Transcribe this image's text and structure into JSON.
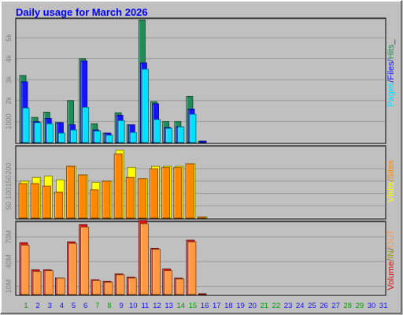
{
  "chart_data": [
    {
      "type": "bar",
      "panel": "hits-files-pages",
      "title": "Daily usage for March 2026",
      "categories": [
        1,
        2,
        3,
        4,
        5,
        6,
        7,
        8,
        9,
        10,
        11,
        12,
        13,
        14,
        15,
        16,
        17,
        18,
        19,
        20,
        21,
        22,
        23,
        24,
        25,
        26,
        27,
        28,
        29,
        30,
        31
      ],
      "weekend_days": [
        1,
        7,
        8,
        14,
        15,
        21,
        22,
        28,
        29
      ],
      "ylabel_parts": [
        {
          "text": "Pages",
          "color": "#00e0ff"
        },
        {
          "text": "/",
          "color": "#1f1fbf"
        },
        {
          "text": "Files",
          "color": "#1414ff"
        },
        {
          "text": "/",
          "color": "#1f1fbf"
        },
        {
          "text": "Hits",
          "color": "#1f8c5a"
        },
        {
          "text": "_",
          "color": "#1f1fbf"
        }
      ],
      "ylim": [
        0,
        5900
      ],
      "yticks": [
        1000,
        2000,
        3000,
        4000,
        5000
      ],
      "ytick_labels": [
        "1000",
        "2k",
        "3k",
        "4k",
        "5k"
      ],
      "series": [
        {
          "name": "Hits",
          "color": "#1f8c5a",
          "values": [
            3200,
            1200,
            1450,
            950,
            2000,
            4000,
            900,
            450,
            1420,
            850,
            5850,
            1950,
            1000,
            1000,
            2200,
            70,
            0,
            0,
            0,
            0,
            0,
            0,
            0,
            0,
            0,
            0,
            0,
            0,
            0,
            0,
            0
          ]
        },
        {
          "name": "Files",
          "color": "#1414ff",
          "values": [
            2900,
            1000,
            1150,
            950,
            850,
            3900,
            600,
            450,
            1300,
            850,
            3800,
            1850,
            720,
            750,
            1600,
            70,
            0,
            0,
            0,
            0,
            0,
            0,
            0,
            0,
            0,
            0,
            0,
            0,
            0,
            0,
            0
          ]
        },
        {
          "name": "Pages",
          "color": "#00e0ff",
          "values": [
            1650,
            950,
            900,
            450,
            600,
            1680,
            550,
            350,
            1050,
            480,
            3500,
            1100,
            680,
            750,
            1350,
            0,
            0,
            0,
            0,
            0,
            0,
            0,
            0,
            0,
            0,
            0,
            0,
            0,
            0,
            0,
            0
          ]
        }
      ]
    },
    {
      "type": "bar",
      "panel": "visits-sites",
      "categories": [
        1,
        2,
        3,
        4,
        5,
        6,
        7,
        8,
        9,
        10,
        11,
        12,
        13,
        14,
        15,
        16,
        17,
        18,
        19,
        20,
        21,
        22,
        23,
        24,
        25,
        26,
        27,
        28,
        29,
        30,
        31
      ],
      "ylabel_parts": [
        {
          "text": "Visits",
          "color": "#ffff00"
        },
        {
          "text": "/",
          "color": "#cc8800"
        },
        {
          "text": "Sites",
          "color": "#ff8800"
        }
      ],
      "ylim": [
        0,
        290
      ],
      "yticks": [
        50,
        100,
        150,
        200
      ],
      "ytick_labels": [
        "50",
        "100",
        "150",
        "200"
      ],
      "series": [
        {
          "name": "Visits",
          "color": "#ffff00",
          "values": [
            150,
            165,
            170,
            155,
            210,
            175,
            145,
            150,
            275,
            205,
            160,
            210,
            210,
            210,
            220,
            5,
            0,
            0,
            0,
            0,
            0,
            0,
            0,
            0,
            0,
            0,
            0,
            0,
            0,
            0,
            0
          ]
        },
        {
          "name": "Sites",
          "color": "#ff8800",
          "values": [
            140,
            140,
            130,
            105,
            210,
            175,
            115,
            150,
            260,
            165,
            160,
            200,
            205,
            205,
            220,
            5,
            0,
            0,
            0,
            0,
            0,
            0,
            0,
            0,
            0,
            0,
            0,
            0,
            0,
            0,
            0
          ]
        }
      ]
    },
    {
      "type": "bar",
      "panel": "volume-in-out",
      "categories": [
        1,
        2,
        3,
        4,
        5,
        6,
        7,
        8,
        9,
        10,
        11,
        12,
        13,
        14,
        15,
        16,
        17,
        18,
        19,
        20,
        21,
        22,
        23,
        24,
        25,
        26,
        27,
        28,
        29,
        30,
        31
      ],
      "ylabel_parts": [
        {
          "text": "Volume",
          "color": "#dd1111"
        },
        {
          "text": "/",
          "color": "#995522"
        },
        {
          "text": "IN",
          "color": "#999900"
        },
        {
          "text": "/",
          "color": "#995522"
        },
        {
          "text": "OUT",
          "color": "#ff9944"
        }
      ],
      "ylim": [
        0,
        88
      ],
      "yticks": [
        10,
        40,
        70
      ],
      "ytick_labels": [
        "10M",
        "40M",
        "70M"
      ],
      "series": [
        {
          "name": "Volume",
          "color": "#dd1111",
          "values": [
            63,
            30,
            30,
            20,
            64,
            85,
            18,
            16,
            25,
            21,
            90,
            56,
            31,
            20,
            66,
            1,
            0,
            0,
            0,
            0,
            0,
            0,
            0,
            0,
            0,
            0,
            0,
            0,
            0,
            0,
            0
          ]
        },
        {
          "name": "OUT",
          "color": "#ff9944",
          "values": [
            60,
            28,
            29,
            20,
            62,
            82,
            17,
            15,
            24,
            20,
            86,
            55,
            29,
            19,
            64,
            0,
            0,
            0,
            0,
            0,
            0,
            0,
            0,
            0,
            0,
            0,
            0,
            0,
            0,
            0,
            0
          ]
        }
      ]
    }
  ],
  "colors": {
    "background": "#c0c0c0",
    "weekday_label": "#1414ff",
    "weekend_label": "#00a000",
    "title": "#0000ff"
  }
}
